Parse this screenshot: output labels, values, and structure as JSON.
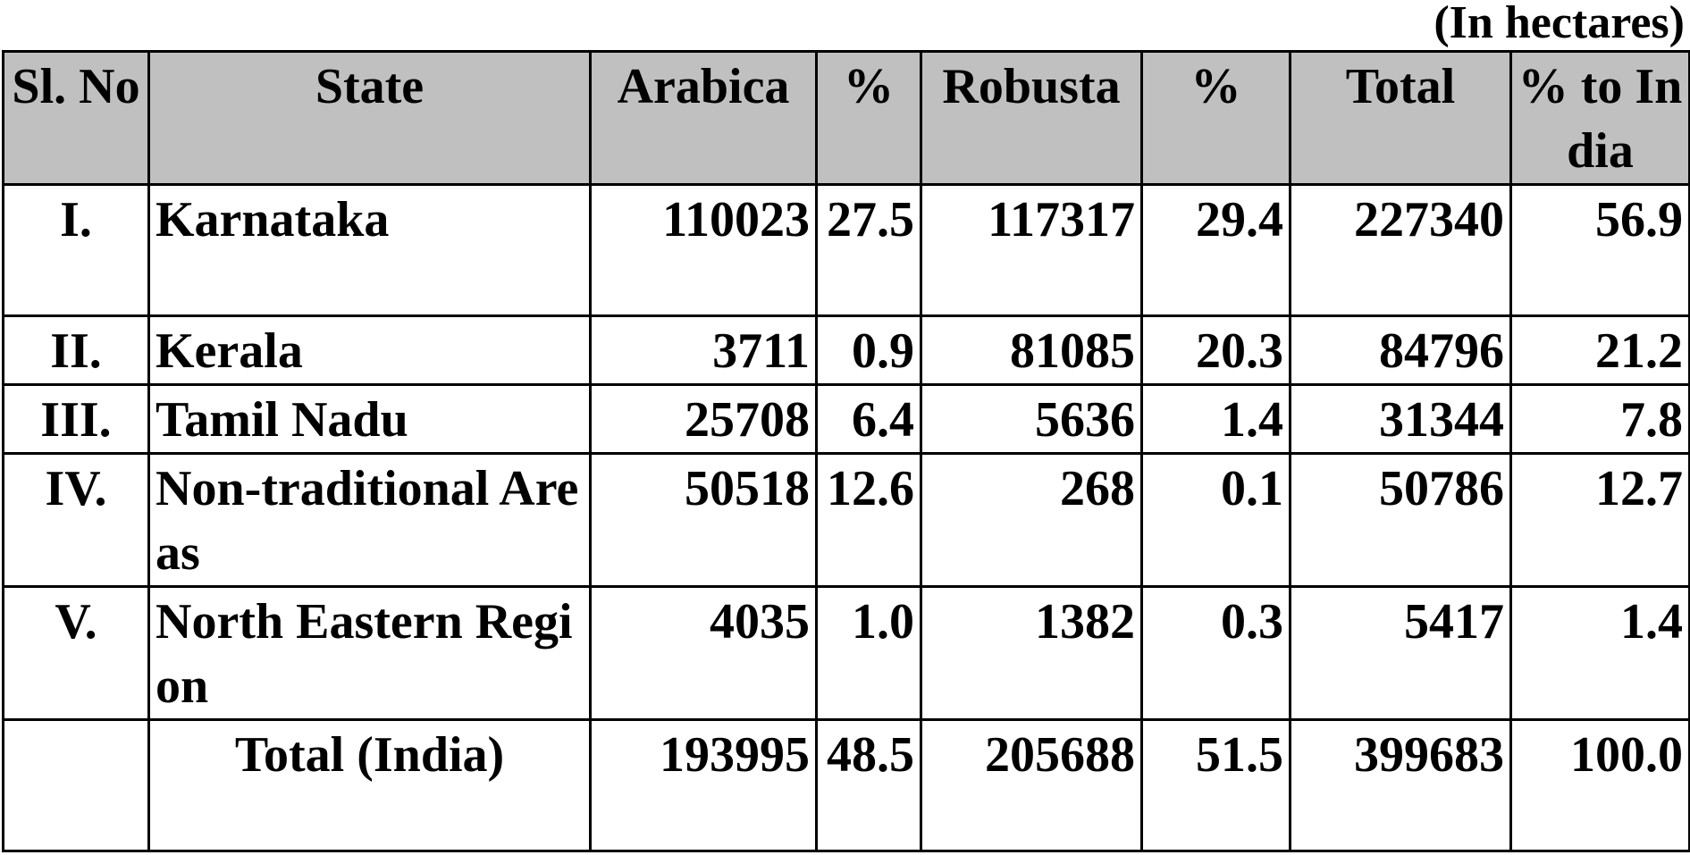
{
  "unit_note": "(In hectares)",
  "headers": {
    "sl_no": "Sl. No",
    "state": "State",
    "arabica": "Arabica",
    "arabica_pct": "%",
    "robusta": "Robusta",
    "robusta_pct": "%",
    "total": "Total",
    "pct_to_india": "% to India"
  },
  "rows": [
    {
      "sl": "I.",
      "state": "Karnataka",
      "arabica": "110023",
      "arabica_pct": "27.5",
      "robusta": "117317",
      "robusta_pct": "29.4",
      "total": "227340",
      "pct_to_india": "56.9"
    },
    {
      "sl": "II.",
      "state": "Kerala",
      "arabica": "3711",
      "arabica_pct": "0.9",
      "robusta": "81085",
      "robusta_pct": "20.3",
      "total": "84796",
      "pct_to_india": "21.2"
    },
    {
      "sl": "III.",
      "state": "Tamil Nadu",
      "arabica": "25708",
      "arabica_pct": "6.4",
      "robusta": "5636",
      "robusta_pct": "1.4",
      "total": "31344",
      "pct_to_india": "7.8"
    },
    {
      "sl": "IV.",
      "state": "Non-traditional Areas",
      "arabica": "50518",
      "arabica_pct": "12.6",
      "robusta": "268",
      "robusta_pct": "0.1",
      "total": "50786",
      "pct_to_india": "12.7"
    },
    {
      "sl": "V.",
      "state": "North Eastern Region",
      "arabica": "4035",
      "arabica_pct": "1.0",
      "robusta": "1382",
      "robusta_pct": "0.3",
      "total": "5417",
      "pct_to_india": "1.4"
    }
  ],
  "total_row": {
    "label": "Total (India)",
    "arabica": "193995",
    "arabica_pct": "48.5",
    "robusta": "205688",
    "robusta_pct": "51.5",
    "total": "399683",
    "pct_to_india": "100.0"
  }
}
